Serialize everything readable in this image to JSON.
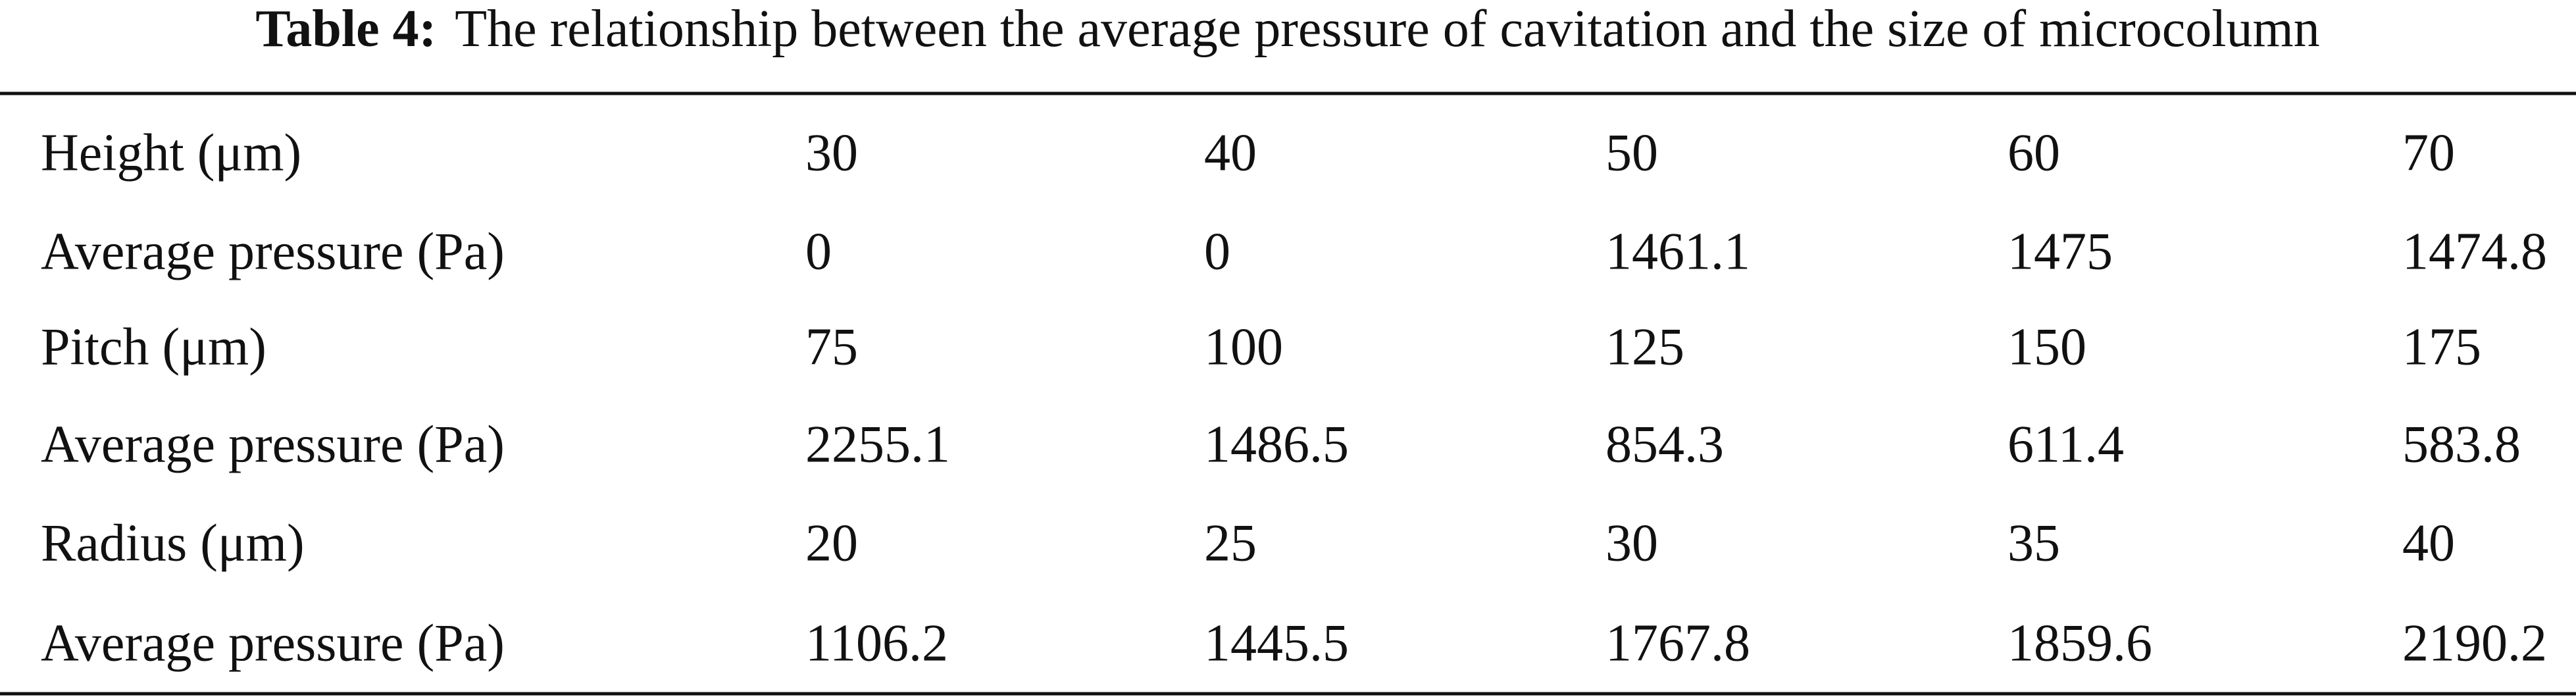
{
  "caption": {
    "label": "Table 4:",
    "text": "The relationship between the average pressure of cavitation and the size of microcolumn"
  },
  "table": {
    "rows": [
      [
        "Height (μm)",
        "30",
        "40",
        "50",
        "60",
        "70"
      ],
      [
        "Average pressure (Pa)",
        "0",
        "0",
        "1461.1",
        "1475",
        "1474.8"
      ],
      [
        "Pitch (μm)",
        "75",
        "100",
        "125",
        "150",
        "175"
      ],
      [
        "Average pressure (Pa)",
        "2255.1",
        "1486.5",
        "854.3",
        "611.4",
        "583.8"
      ],
      [
        "Radius (μm)",
        "20",
        "25",
        "30",
        "35",
        "40"
      ],
      [
        "Average pressure (Pa)",
        "1106.2",
        "1445.5",
        "1767.8",
        "1859.6",
        "2190.2"
      ]
    ]
  }
}
